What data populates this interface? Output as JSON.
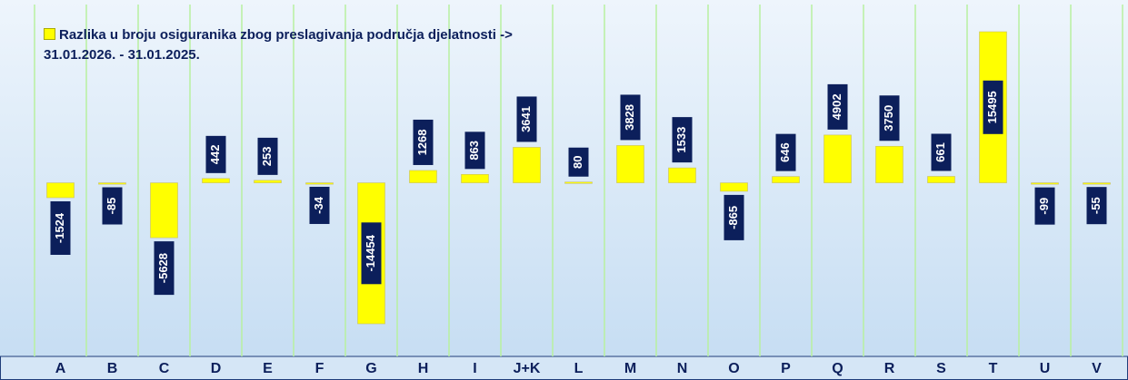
{
  "chart_data": {
    "type": "bar",
    "categories": [
      "A",
      "B",
      "C",
      "D",
      "E",
      "F",
      "G",
      "H",
      "I",
      "J+K",
      "L",
      "M",
      "N",
      "O",
      "P",
      "Q",
      "R",
      "S",
      "T",
      "U",
      "V"
    ],
    "series": [
      {
        "name": "Razlika u broju osiguranika zbog preslagivanja područja djelatnosti -> 31.01.2026. - 31.01.2025.",
        "color": "#ffff00",
        "values": [
          -1524,
          -85,
          -5628,
          442,
          253,
          -34,
          -14454,
          1268,
          863,
          3641,
          80,
          3828,
          1533,
          -865,
          646,
          4902,
          3750,
          661,
          15495,
          -99,
          -55
        ]
      }
    ],
    "label_color": "#0c1f5b",
    "grid": true,
    "legend": "top-left"
  }
}
